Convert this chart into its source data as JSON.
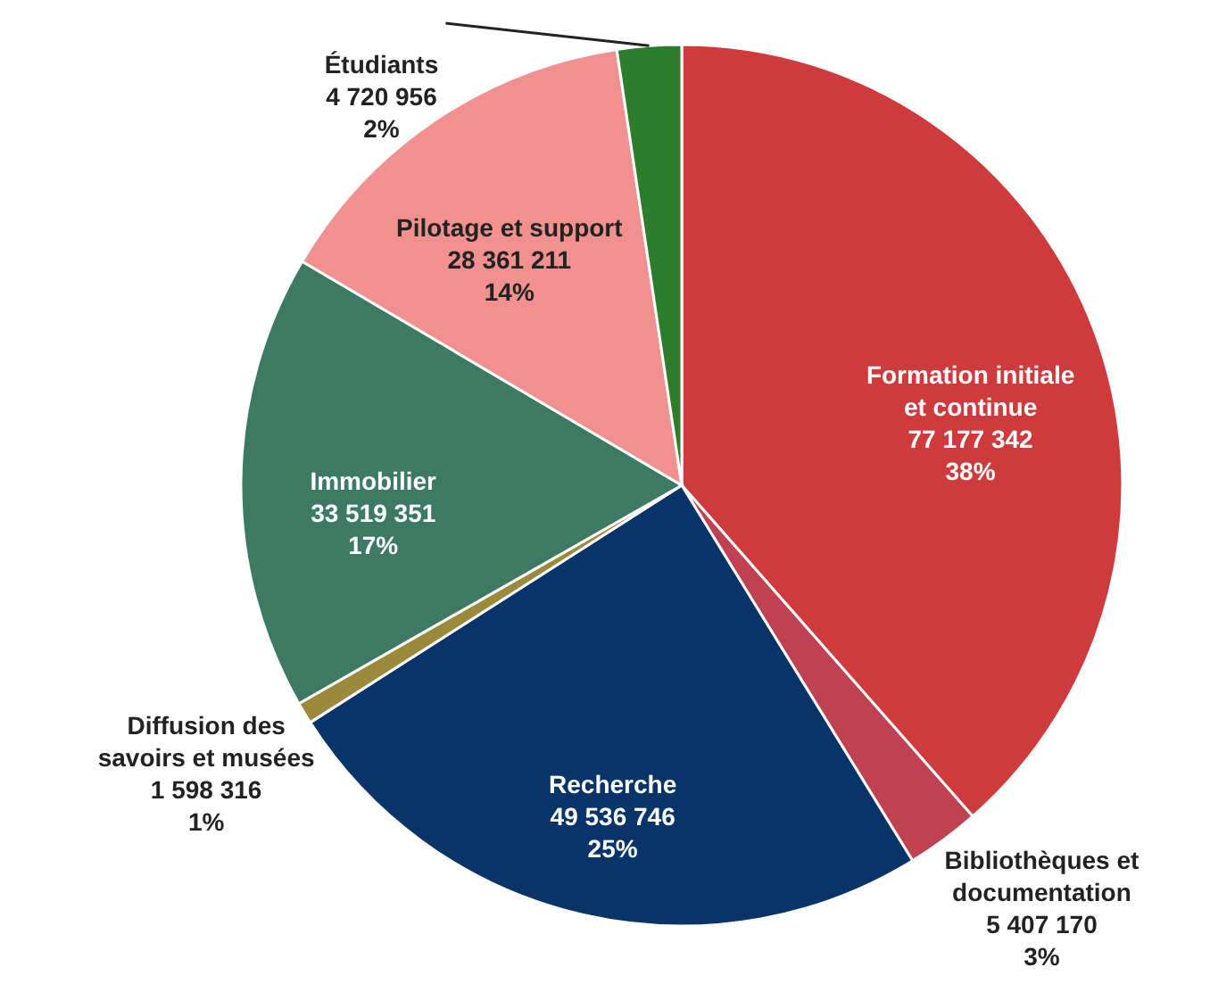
{
  "chart_data": {
    "type": "pie",
    "categories": [
      "Formation initiale\net continue",
      "Bibliothèques et\ndocumentation",
      "Recherche",
      "Diffusion des\nsavoirs et musées",
      "Immobilier",
      "Pilotage et support",
      "Étudiants"
    ],
    "values": [
      77177342,
      5407170,
      49536746,
      1598316,
      33519351,
      28361211,
      4720956
    ],
    "value_labels": [
      "77 177 342\n38%",
      "5 407 170\n3%",
      "49 536 746\n25%",
      "1 598 316\n1%",
      "33 519 351\n17%",
      "28 361 211\n14%",
      "4 720 956\n2%"
    ],
    "colors": [
      "#cf3a3c",
      "#bf4152",
      "#08346a",
      "#9c8a3c",
      "#3d7a64",
      "#f0918f",
      "#2e7d2c"
    ]
  }
}
